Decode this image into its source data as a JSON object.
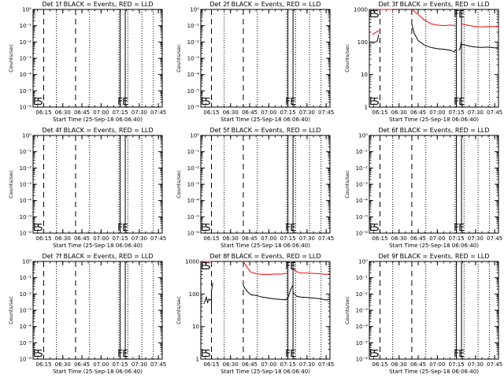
{
  "figure": {
    "background": "#ffffff",
    "events_color": "#000000",
    "lld_color": "#ff0000"
  },
  "chart_data": [
    {
      "type": "line",
      "title": "Det 1f BLACK = Events, RED = LLD",
      "xlabel": "Start Time (25-Sep-18 06:06:40)",
      "ylabel": "Counts/sec",
      "scale": "log",
      "yticks": [
        "10⁰",
        "10⁻¹",
        "10⁻²",
        "10⁻³",
        "10⁻⁴",
        "10⁻⁵",
        "10⁻⁶"
      ],
      "y_tick_values": [
        1,
        0.1,
        0.01,
        0.001,
        0.0001,
        1e-05,
        1e-06
      ],
      "ylim": [
        1e-06,
        1
      ],
      "xticks": [
        "06:15",
        "06:30",
        "06:45",
        "07:00",
        "07:15",
        "07:30",
        "07:45"
      ],
      "x_tick_values": [
        "06:15",
        "06:30",
        "06:45",
        "07:00",
        "07:15",
        "07:30",
        "07:45"
      ],
      "xlim": [
        "06:06:40",
        "07:48:00"
      ],
      "markers": {
        "E": "06:09",
        "S": "06:12",
        "F": "07:15",
        "E2": "07:19"
      },
      "dashed_lines": [
        "06:15",
        "06:40"
      ],
      "dotted_lines": [
        "06:25",
        "06:51",
        "07:14",
        "07:21",
        "07:32",
        "07:41"
      ],
      "solid_lines": [
        "07:15",
        "07:19"
      ],
      "series": []
    },
    {
      "type": "line",
      "title": "Det 2f BLACK = Events, RED = LLD",
      "xlabel": "Start Time (25-Sep-18 06:06:40)",
      "ylabel": "Counts/sec",
      "scale": "log",
      "yticks": [
        "10⁰",
        "10⁻¹",
        "10⁻²",
        "10⁻³",
        "10⁻⁴",
        "10⁻⁵",
        "10⁻⁶"
      ],
      "y_tick_values": [
        1,
        0.1,
        0.01,
        0.001,
        0.0001,
        1e-05,
        1e-06
      ],
      "ylim": [
        1e-06,
        1
      ],
      "xticks": [
        "06:15",
        "06:30",
        "06:45",
        "07:00",
        "07:15",
        "07:30",
        "07:45"
      ],
      "x_tick_values": [
        "06:15",
        "06:30",
        "06:45",
        "07:00",
        "07:15",
        "07:30",
        "07:45"
      ],
      "xlim": [
        "06:06:40",
        "07:48:00"
      ],
      "markers": {
        "E": "06:09",
        "S": "06:12",
        "F": "07:15",
        "E2": "07:19"
      },
      "dashed_lines": [
        "06:15",
        "06:40"
      ],
      "dotted_lines": [
        "06:25",
        "06:51",
        "07:14",
        "07:21",
        "07:32",
        "07:41"
      ],
      "solid_lines": [
        "07:15",
        "07:19"
      ],
      "series": []
    },
    {
      "type": "line",
      "title": "Det 3f BLACK = Events, RED = LLD",
      "xlabel": "Start Time (25-Sep-18 06:06:40)",
      "ylabel": "Counts/sec",
      "scale": "log",
      "yticks": [
        "1",
        "10",
        "100",
        "1000"
      ],
      "y_tick_values": [
        1,
        10,
        100,
        1000
      ],
      "ylim": [
        1,
        1000
      ],
      "xticks": [
        "06:15",
        "06:30",
        "06:45",
        "07:00",
        "07:15",
        "07:30",
        "07:45"
      ],
      "x_tick_values": [
        "06:15",
        "06:30",
        "06:45",
        "07:00",
        "07:15",
        "07:30",
        "07:45"
      ],
      "xlim": [
        "06:06:40",
        "07:48:00"
      ],
      "markers": {
        "E": "06:09",
        "S": "06:12",
        "F": "07:15",
        "E2": "07:19"
      },
      "dashed_lines": [
        "06:15",
        "06:40"
      ],
      "dotted_lines": [
        "06:25",
        "06:51",
        "07:14",
        "07:21",
        "07:32",
        "07:41"
      ],
      "solid_lines": [
        "07:15",
        "07:19"
      ],
      "series": [
        {
          "color": "#ff0000",
          "x": [
            "06:09",
            "06:10",
            "06:11",
            "06:12",
            "06:13",
            "06:14"
          ],
          "y": [
            170,
            175,
            190,
            200,
            210,
            230
          ]
        },
        {
          "color": "#ff0000",
          "x": [
            "06:14",
            "06:15",
            "06:25"
          ],
          "y": [
            1000,
            1000,
            1000
          ]
        },
        {
          "color": "#ff0000",
          "x": [
            "06:40",
            "06:45",
            "06:50",
            "06:55",
            "07:00",
            "07:05",
            "07:10",
            "07:14"
          ],
          "y": [
            1000,
            700,
            470,
            360,
            330,
            320,
            330,
            320
          ]
        },
        {
          "color": "#ff0000",
          "x": [
            "07:19",
            "07:22",
            "07:25",
            "07:30",
            "07:35",
            "07:40",
            "07:45",
            "07:48"
          ],
          "y": [
            360,
            340,
            320,
            300,
            290,
            300,
            295,
            310
          ]
        },
        {
          "color": "#000000",
          "x": [
            "06:09",
            "06:10",
            "06:11",
            "06:12",
            "06:13",
            "06:14"
          ],
          "y": [
            90,
            95,
            100,
            100,
            110,
            170
          ]
        },
        {
          "color": "#000000",
          "x": [
            "06:40",
            "06:42",
            "06:45",
            "06:50",
            "06:55",
            "07:00",
            "07:05",
            "07:10",
            "07:13",
            "07:15"
          ],
          "y": [
            350,
            180,
            110,
            80,
            68,
            62,
            60,
            56,
            50,
            60
          ]
        },
        {
          "color": "#000000",
          "x": [
            "07:17",
            "07:18",
            "07:19"
          ],
          "y": [
            55,
            65,
            110
          ]
        },
        {
          "color": "#000000",
          "x": [
            "07:19",
            "07:22",
            "07:25",
            "07:30",
            "07:35",
            "07:40",
            "07:45",
            "07:48"
          ],
          "y": [
            85,
            80,
            75,
            70,
            68,
            70,
            66,
            65
          ]
        }
      ]
    },
    {
      "type": "line",
      "title": "Det 4f BLACK = Events, RED = LLD",
      "xlabel": "Start Time (25-Sep-18 06:06:40)",
      "ylabel": "Counts/sec",
      "scale": "log",
      "yticks": [
        "10⁰",
        "10⁻¹",
        "10⁻²",
        "10⁻³",
        "10⁻⁴",
        "10⁻⁵",
        "10⁻⁶"
      ],
      "y_tick_values": [
        1,
        0.1,
        0.01,
        0.001,
        0.0001,
        1e-05,
        1e-06
      ],
      "ylim": [
        1e-06,
        1
      ],
      "xticks": [
        "06:15",
        "06:30",
        "06:45",
        "07:00",
        "07:15",
        "07:30",
        "07:45"
      ],
      "x_tick_values": [
        "06:15",
        "06:30",
        "06:45",
        "07:00",
        "07:15",
        "07:30",
        "07:45"
      ],
      "xlim": [
        "06:06:40",
        "07:48:00"
      ],
      "markers": {
        "E": "06:09",
        "S": "06:12",
        "F": "07:15",
        "E2": "07:19"
      },
      "dashed_lines": [
        "06:15",
        "06:40"
      ],
      "dotted_lines": [
        "06:25",
        "06:51",
        "07:14",
        "07:21",
        "07:32",
        "07:41"
      ],
      "solid_lines": [
        "07:15",
        "07:19"
      ],
      "series": []
    },
    {
      "type": "line",
      "title": "Det 5f BLACK = Events, RED = LLD",
      "xlabel": "Start Time (25-Sep-18 06:06:40)",
      "ylabel": "Counts/sec",
      "scale": "log",
      "yticks": [
        "10⁰",
        "10⁻¹",
        "10⁻²",
        "10⁻³",
        "10⁻⁴",
        "10⁻⁵",
        "10⁻⁶"
      ],
      "y_tick_values": [
        1,
        0.1,
        0.01,
        0.001,
        0.0001,
        1e-05,
        1e-06
      ],
      "ylim": [
        1e-06,
        1
      ],
      "xticks": [
        "06:15",
        "06:30",
        "06:45",
        "07:00",
        "07:15",
        "07:30",
        "07:45"
      ],
      "x_tick_values": [
        "06:15",
        "06:30",
        "06:45",
        "07:00",
        "07:15",
        "07:30",
        "07:45"
      ],
      "xlim": [
        "06:06:40",
        "07:48:00"
      ],
      "markers": {
        "E": "06:09",
        "S": "06:12",
        "F": "07:15",
        "E2": "07:19"
      },
      "dashed_lines": [
        "06:15",
        "06:40"
      ],
      "dotted_lines": [
        "06:25",
        "06:51",
        "07:14",
        "07:21",
        "07:32",
        "07:41"
      ],
      "solid_lines": [
        "07:15",
        "07:19"
      ],
      "series": []
    },
    {
      "type": "line",
      "title": "Det 6f BLACK = Events, RED = LLD",
      "xlabel": "Start Time (25-Sep-18 06:06:40)",
      "ylabel": "Counts/sec",
      "scale": "log",
      "yticks": [
        "10⁰",
        "10⁻¹",
        "10⁻²",
        "10⁻³",
        "10⁻⁴",
        "10⁻⁵",
        "10⁻⁶"
      ],
      "y_tick_values": [
        1,
        0.1,
        0.01,
        0.001,
        0.0001,
        1e-05,
        1e-06
      ],
      "ylim": [
        1e-06,
        1
      ],
      "xticks": [
        "06:15",
        "06:30",
        "06:45",
        "07:00",
        "07:15",
        "07:30",
        "07:45"
      ],
      "x_tick_values": [
        "06:15",
        "06:30",
        "06:45",
        "07:00",
        "07:15",
        "07:30",
        "07:45"
      ],
      "xlim": [
        "06:06:40",
        "07:48:00"
      ],
      "markers": {
        "E": "06:09",
        "S": "06:12",
        "F": "07:15",
        "E2": "07:19"
      },
      "dashed_lines": [
        "06:15",
        "06:40"
      ],
      "dotted_lines": [
        "06:25",
        "06:51",
        "07:14",
        "07:21",
        "07:32",
        "07:41"
      ],
      "solid_lines": [
        "07:15",
        "07:19"
      ],
      "series": []
    },
    {
      "type": "line",
      "title": "Det 7f BLACK = Events, RED = LLD",
      "xlabel": "Start Time (25-Sep-18 06:06:40)",
      "ylabel": "Counts/sec",
      "scale": "log",
      "yticks": [
        "10⁰",
        "10⁻¹",
        "10⁻²",
        "10⁻³",
        "10⁻⁴",
        "10⁻⁵",
        "10⁻⁶"
      ],
      "y_tick_values": [
        1,
        0.1,
        0.01,
        0.001,
        0.0001,
        1e-05,
        1e-06
      ],
      "ylim": [
        1e-06,
        1
      ],
      "xticks": [
        "06:15",
        "06:30",
        "06:45",
        "07:00",
        "07:15",
        "07:30",
        "07:45"
      ],
      "x_tick_values": [
        "06:15",
        "06:30",
        "06:45",
        "07:00",
        "07:15",
        "07:30",
        "07:45"
      ],
      "xlim": [
        "06:06:40",
        "07:48:00"
      ],
      "markers": {
        "E": "06:09",
        "S": "06:12",
        "F": "07:15",
        "E2": "07:19"
      },
      "dashed_lines": [
        "06:15",
        "06:40"
      ],
      "dotted_lines": [
        "06:25",
        "06:51",
        "07:14",
        "07:21",
        "07:32",
        "07:41"
      ],
      "solid_lines": [
        "07:15",
        "07:19"
      ],
      "series": []
    },
    {
      "type": "line",
      "title": "Det 8f BLACK = Events, RED = LLD",
      "xlabel": "Start Time (25-Sep-18 06:06:40)",
      "ylabel": "Counts/sec",
      "scale": "log",
      "yticks": [
        "1",
        "10",
        "100",
        "1000"
      ],
      "y_tick_values": [
        1,
        10,
        100,
        1000
      ],
      "ylim": [
        1,
        1000
      ],
      "xticks": [
        "06:15",
        "06:30",
        "06:45",
        "07:00",
        "07:15",
        "07:30",
        "07:45"
      ],
      "x_tick_values": [
        "06:15",
        "06:30",
        "06:45",
        "07:00",
        "07:15",
        "07:30",
        "07:45"
      ],
      "xlim": [
        "06:06:40",
        "07:48:00"
      ],
      "markers": {
        "E": "06:09",
        "S": "06:12",
        "F": "07:15",
        "E2": "07:19"
      },
      "dashed_lines": [
        "06:15",
        "06:40"
      ],
      "dotted_lines": [
        "06:25",
        "06:51",
        "07:14",
        "07:21",
        "07:32",
        "07:41"
      ],
      "solid_lines": [
        "07:15",
        "07:19"
      ],
      "series": [
        {
          "color": "#ff0000",
          "x": [
            "06:09",
            "06:10",
            "06:11",
            "06:12",
            "06:13",
            "06:14",
            "06:15"
          ],
          "y": [
            1000,
            1000,
            1000,
            1000,
            1000,
            1000,
            1000
          ]
        },
        {
          "color": "#ff0000",
          "x": [
            "06:40",
            "06:43",
            "06:46",
            "06:50",
            "06:55",
            "07:00",
            "07:05",
            "07:10",
            "07:15"
          ],
          "y": [
            1000,
            650,
            470,
            420,
            400,
            400,
            410,
            410,
            440
          ]
        },
        {
          "color": "#ff0000",
          "x": [
            "07:19",
            "07:22",
            "07:25",
            "07:30",
            "07:35",
            "07:40",
            "07:45",
            "07:48"
          ],
          "y": [
            580,
            480,
            440,
            440,
            430,
            420,
            400,
            420
          ]
        },
        {
          "color": "#000000",
          "x": [
            "06:09",
            "06:10",
            "06:11",
            "06:12",
            "06:13",
            "06:14",
            "06:15"
          ],
          "y": [
            50,
            60,
            80,
            55,
            70,
            65,
            70
          ]
        },
        {
          "color": "#000000",
          "x": [
            "06:15",
            "06:15",
            "06:16"
          ],
          "y": [
            30,
            120,
            220
          ]
        },
        {
          "color": "#000000",
          "x": [
            "06:40",
            "06:43",
            "06:46",
            "06:50",
            "06:55",
            "07:00",
            "07:05",
            "07:10",
            "07:13",
            "07:15"
          ],
          "y": [
            180,
            120,
            95,
            90,
            80,
            75,
            70,
            68,
            66,
            75
          ]
        },
        {
          "color": "#000000",
          "x": [
            "07:15",
            "07:17",
            "07:19"
          ],
          "y": [
            75,
            130,
            190
          ]
        },
        {
          "color": "#000000",
          "x": [
            "07:19",
            "07:22",
            "07:25",
            "07:30",
            "07:35",
            "07:40",
            "07:45",
            "07:48"
          ],
          "y": [
            110,
            85,
            80,
            78,
            75,
            72,
            65,
            70
          ]
        }
      ]
    },
    {
      "type": "line",
      "title": "Det 9f BLACK = Events, RED = LLD",
      "xlabel": "Start Time (25-Sep-18 06:06:40)",
      "ylabel": "Counts/sec",
      "scale": "log",
      "yticks": [
        "10⁰",
        "10⁻¹",
        "10⁻²",
        "10⁻³",
        "10⁻⁴",
        "10⁻⁵",
        "10⁻⁶"
      ],
      "y_tick_values": [
        1,
        0.1,
        0.01,
        0.001,
        0.0001,
        1e-05,
        1e-06
      ],
      "ylim": [
        1e-06,
        1
      ],
      "xticks": [
        "06:15",
        "06:30",
        "06:45",
        "07:00",
        "07:15",
        "07:30",
        "07:45"
      ],
      "x_tick_values": [
        "06:15",
        "06:30",
        "06:45",
        "07:00",
        "07:15",
        "07:30",
        "07:45"
      ],
      "xlim": [
        "06:06:40",
        "07:48:00"
      ],
      "markers": {
        "E": "06:09",
        "S": "06:12",
        "F": "07:15",
        "E2": "07:19"
      },
      "dashed_lines": [
        "06:15",
        "06:40"
      ],
      "dotted_lines": [
        "06:25",
        "06:51",
        "07:14",
        "07:21",
        "07:32",
        "07:41"
      ],
      "solid_lines": [
        "07:15",
        "07:19"
      ],
      "series": []
    }
  ]
}
